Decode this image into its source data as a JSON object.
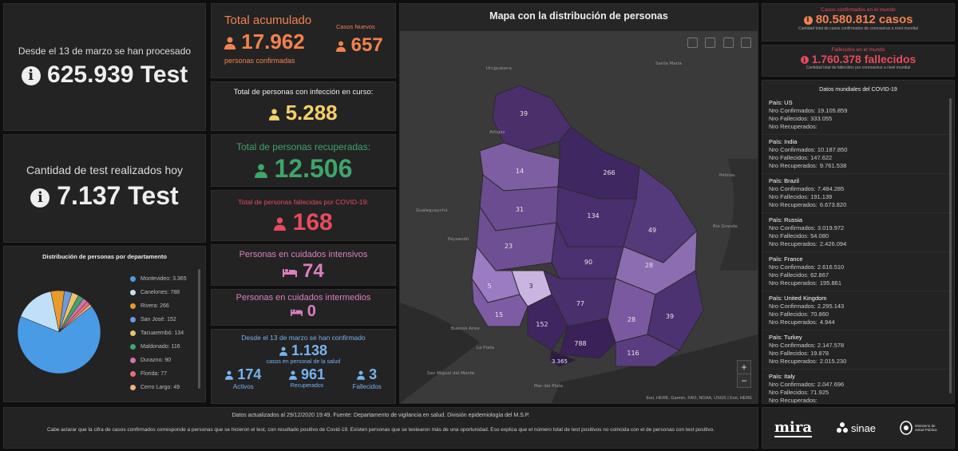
{
  "tests": {
    "processed_label": "Desde el 13 de marzo se han procesado",
    "processed_value": "625.939 Test",
    "today_label": "Cantidad de test realizados hoy",
    "today_value": "7.137 Test"
  },
  "distribution": {
    "title": "Distribución de personas por departamento",
    "legend": [
      {
        "label": "Montevideo: 3.365",
        "color": "#4a9be6"
      },
      {
        "label": "Canelones: 788",
        "color": "#bfe0f8"
      },
      {
        "label": "Rivera: 266",
        "color": "#e89b2b"
      },
      {
        "label": "San José: 152",
        "color": "#6b9ce0"
      },
      {
        "label": "Tacuarembó: 134",
        "color": "#f0c26b"
      },
      {
        "label": "Maldonado: 116",
        "color": "#3ea56b"
      },
      {
        "label": "Durazno: 90",
        "color": "#d86fb5"
      },
      {
        "label": "Florida: 77",
        "color": "#e0707b"
      },
      {
        "label": "Cerro Largo: 49",
        "color": "#f3b37a"
      }
    ]
  },
  "chart_data": {
    "type": "pie",
    "title": "Distribución de personas por departamento",
    "categories": [
      "Montevideo",
      "Canelones",
      "Rivera",
      "San José",
      "Tacuarembó",
      "Maldonado",
      "Durazno",
      "Florida",
      "Cerro Largo"
    ],
    "values": [
      3365,
      788,
      266,
      152,
      134,
      116,
      90,
      77,
      49
    ]
  },
  "totals": {
    "accum_label": "Total acumulado",
    "accum_value": "17.962",
    "accum_sub": "personas confirmadas",
    "new_label": "Casos Nuevos",
    "new_value": "657",
    "active_label": "Total de personas con infección en curso:",
    "active_value": "5.288",
    "recovered_label": "Total de personas recuperadas:",
    "recovered_value": "12.506",
    "deaths_label": "Total de personas fallecidas por COVID-19:",
    "deaths_value": "168",
    "icu_label": "Personas en cuidados intensivos",
    "icu_value": "74",
    "intermediate_label": "Personas en cuidados intermedios",
    "intermediate_value": "0"
  },
  "health_staff": {
    "header": "Desde el 13 de marzo se han confirmado",
    "confirmed_value": "1.138",
    "confirmed_sub": "casos en personal de la salud",
    "active_value": "174",
    "active_label": "Activos",
    "recovered_value": "961",
    "recovered_label": "Recuperados",
    "deaths_value": "3",
    "deaths_label": "Fallecidos"
  },
  "map": {
    "title": "Mapa con la distribución de personas",
    "attribution": "Esri, HERE, Garmin, FAO, NOAA, USGS | Esri, HERE",
    "labels": {
      "artigas": "39",
      "salto": "14",
      "rivera": "266",
      "paysandu": "31",
      "tacuarembo": "134",
      "cerrolargo": "49",
      "rionegro": "23",
      "durazno": "90",
      "treintaytres": "28",
      "soriano": "5",
      "flores": "3",
      "florida": "77",
      "colonia": "15",
      "sanjose": "152",
      "lavalleja": "28",
      "rocha": "39",
      "canelones": "788",
      "maldonado": "116",
      "montevideo": "3.365"
    },
    "place_names": [
      "Uruguaiana",
      "Santa Maria",
      "Artigas",
      "Paysandú",
      "Gualeguaychú",
      "Buenos Aires",
      "La Plata",
      "Mar del Plata",
      "Pelotas",
      "Rio Grande",
      "San Miguel del Monte"
    ]
  },
  "world": {
    "confirmed_label": "Casos confirmados en el mundo",
    "confirmed_value": "80.580.812 casos",
    "confirmed_sub": "Cantidad total de casos confirmados de coronavirus a nivel mundial",
    "deaths_label": "Fallecidos en el mundo",
    "deaths_value": "1.760.378 fallecidos",
    "deaths_sub": "Cantidad total de fallecidos por coronavirus a nivel mundial",
    "list_title": "Datos mundiales del COVID-19",
    "rec_prefix": "Nro Recuperados:",
    "countries": [
      {
        "pais": "País: US",
        "confirmados": "Nro Confirmados: 19.105.859",
        "fallecidos": "Nro Fallecidos: 333.055",
        "recuperados": ""
      },
      {
        "pais": "País: India",
        "confirmados": "Nro Confirmados: 10.187.850",
        "fallecidos": "Nro Fallecidos: 147.622",
        "recuperados": "9.761.538"
      },
      {
        "pais": "País: Brazil",
        "confirmados": "Nro Confirmados: 7.484.285",
        "fallecidos": "Nro Fallecidos: 191.139",
        "recuperados": "6.673.820"
      },
      {
        "pais": "País: Russia",
        "confirmados": "Nro Confirmados: 3.019.972",
        "fallecidos": "Nro Fallecidos: 54.080",
        "recuperados": "2.426.094"
      },
      {
        "pais": "País: France",
        "confirmados": "Nro Confirmados: 2.616.510",
        "fallecidos": "Nro Fallecidos: 62.867",
        "recuperados": "195.861"
      },
      {
        "pais": "País: United Kingdom",
        "confirmados": "Nro Confirmados: 2.295.143",
        "fallecidos": "Nro Fallecidos: 70.860",
        "recuperados": "4.944"
      },
      {
        "pais": "País: Turkey",
        "confirmados": "Nro Confirmados: 2.147.578",
        "fallecidos": "Nro Fallecidos: 19.878",
        "recuperados": "2.015.230"
      },
      {
        "pais": "País: Italy",
        "confirmados": "Nro Confirmados: 2.047.696",
        "fallecidos": "Nro Fallecidos: 71.925",
        "recuperados": ""
      }
    ]
  },
  "footer": {
    "updated": "Datos actualizados al 29/12/2020 19:49. Fuente: Departamento de vigilancia en salud. División epidemiología del M.S.P.",
    "note": "Cabe aclarar que la cifra de casos confirmados corresponde a personas que se hicieron el test, con resultado positivo de Covid-19. Existen personas que se testearon más de una oportunidad. Eso explica que el número total de test positivos no coincida con el de personas con test positivo.",
    "logo_mira": "mira",
    "logo_sinae": "sinae",
    "logo_msp": "Ministerio de Salud Pública"
  }
}
